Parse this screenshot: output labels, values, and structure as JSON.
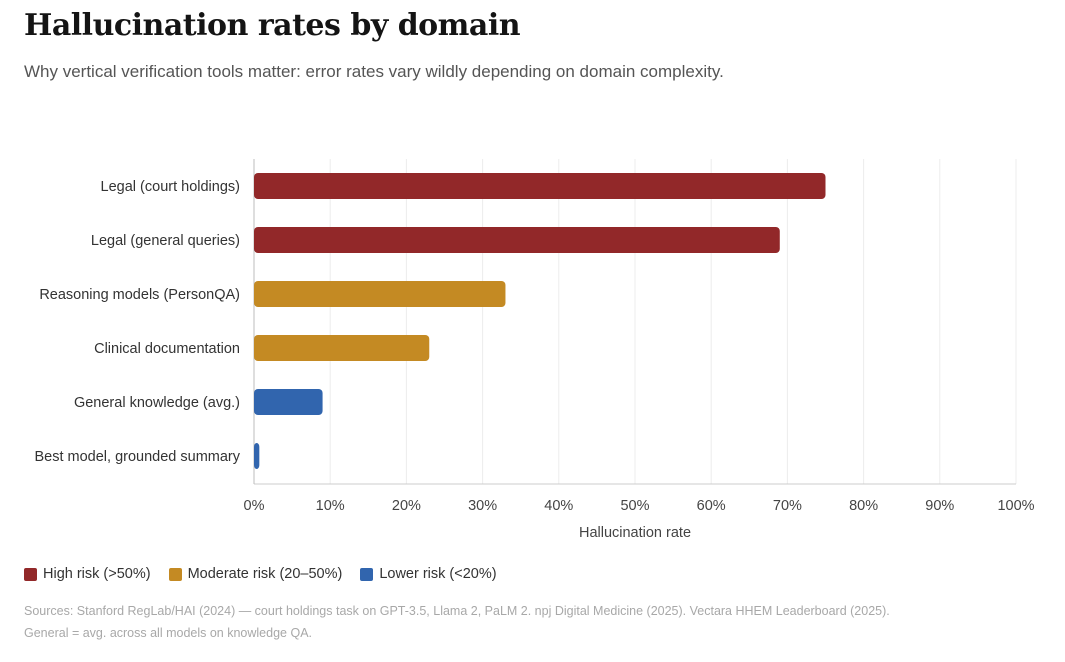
{
  "title": "Hallucination rates by domain",
  "subtitle": "Why vertical verification tools matter: error rates vary wildly depending on domain complexity.",
  "chart_data": {
    "type": "bar",
    "orientation": "horizontal",
    "categories": [
      "Legal (court holdings)",
      "Legal (general queries)",
      "Reasoning models (PersonQA)",
      "Clinical documentation",
      "General knowledge (avg.)",
      "Best model, grounded summary"
    ],
    "values": [
      75,
      69,
      33,
      23,
      9,
      0.7
    ],
    "risk": [
      "high",
      "high",
      "moderate",
      "moderate",
      "lower",
      "lower"
    ],
    "xlabel": "Hallucination rate",
    "ylabel": "",
    "xlim": [
      0,
      100
    ],
    "xticks": [
      "0%",
      "10%",
      "20%",
      "30%",
      "40%",
      "50%",
      "60%",
      "70%",
      "80%",
      "90%",
      "100%"
    ],
    "grid": true
  },
  "legend": [
    {
      "key": "high",
      "label": "High risk (>50%)",
      "color": "#922829"
    },
    {
      "key": "moderate",
      "label": "Moderate risk (20–50%)",
      "color": "#c48a23"
    },
    {
      "key": "lower",
      "label": "Lower risk (<20%)",
      "color": "#3165ae"
    }
  ],
  "sources": {
    "line1": "Sources: Stanford RegLab/HAI (2024) — court holdings task on GPT-3.5, Llama 2, PaLM 2. npj Digital Medicine (2025). Vectara HHEM Leaderboard (2025).",
    "line2": "General = avg. across all models on knowledge QA."
  }
}
